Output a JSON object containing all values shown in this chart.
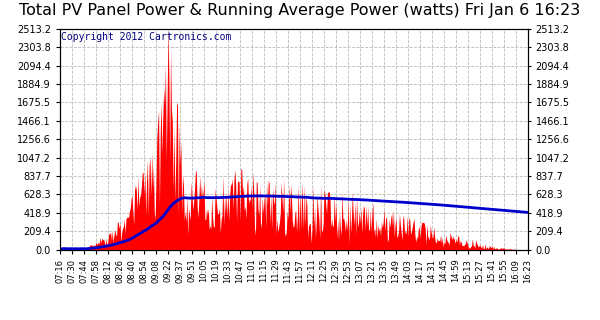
{
  "title": "Total PV Panel Power & Running Average Power (watts) Fri Jan 6 16:23",
  "copyright_text": "Copyright 2012 Cartronics.com",
  "yticks": [
    0.0,
    209.4,
    418.9,
    628.3,
    837.7,
    1047.2,
    1256.6,
    1466.1,
    1675.5,
    1884.9,
    2094.4,
    2303.8,
    2513.2
  ],
  "ymax": 2513.2,
  "xtick_labels": [
    "07:16",
    "07:30",
    "07:44",
    "07:58",
    "08:12",
    "08:26",
    "08:40",
    "08:54",
    "09:08",
    "09:22",
    "09:37",
    "09:51",
    "10:05",
    "10:19",
    "10:33",
    "10:47",
    "11:01",
    "11:15",
    "11:29",
    "11:43",
    "11:57",
    "12:11",
    "12:25",
    "12:39",
    "12:53",
    "13:07",
    "13:21",
    "13:35",
    "13:49",
    "14:03",
    "14:17",
    "14:31",
    "14:45",
    "14:59",
    "15:13",
    "15:27",
    "15:41",
    "15:55",
    "16:09",
    "16:23"
  ],
  "background_color": "#ffffff",
  "plot_bg_color": "#ffffff",
  "grid_color": "#bbbbbb",
  "fill_color": "#ff0000",
  "avg_line_color": "#0000cc",
  "title_fontsize": 11.5,
  "copyright_fontsize": 7,
  "copyright_color": "#000080"
}
